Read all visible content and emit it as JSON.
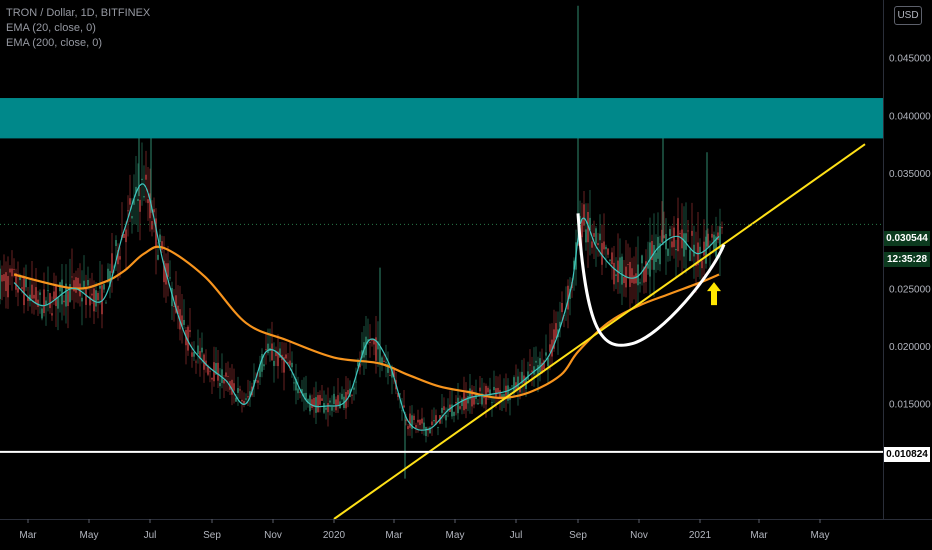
{
  "legend": {
    "symbol": "TRON / Dollar, 1D, BITFINEX",
    "ema20": "EMA (20, close, 0)",
    "ema200": "EMA (200, close, 0)"
  },
  "currency_button": "USD",
  "current_price": {
    "value": "0.030544",
    "countdown": "12:35:28",
    "color": "#0c3b1f"
  },
  "support_price": {
    "value": "0.010824"
  },
  "colors": {
    "resistance_zone": "#00888a",
    "ema20": "#3fc7c0",
    "ema200": "#f7941d",
    "trendline": "#ffe117",
    "cup_curve": "#ffffff",
    "support_line": "#ffffff",
    "arrow": "#ffe600",
    "bull_candle": "#2f8a6e",
    "bear_candle": "#b03a3a"
  },
  "chart_data": {
    "type": "line",
    "title": "TRON / Dollar, 1D, BITFINEX",
    "x_ticks": [
      "Mar",
      "May",
      "Jul",
      "Sep",
      "Nov",
      "2020",
      "Mar",
      "May",
      "Jul",
      "Sep",
      "Nov",
      "2021",
      "Mar",
      "May"
    ],
    "y_ticks": [
      "0.045000",
      "0.040000",
      "0.035000",
      "0.025000",
      "0.020000",
      "0.015000"
    ],
    "ylim": [
      0.005,
      0.05
    ],
    "grid": false,
    "series": [
      {
        "name": "EMA (20, close, 0)",
        "x": [
          "2019-02-15",
          "2019-03-15",
          "2019-04-15",
          "2019-05-15",
          "2019-06-05",
          "2019-06-25",
          "2019-07-15",
          "2019-08-05",
          "2019-08-25",
          "2019-09-15",
          "2019-10-05",
          "2019-10-25",
          "2019-11-15",
          "2019-12-05",
          "2019-12-25",
          "2020-01-15",
          "2020-02-05",
          "2020-02-25",
          "2020-03-15",
          "2020-04-05",
          "2020-04-25",
          "2020-05-15",
          "2020-06-05",
          "2020-06-25",
          "2020-07-15",
          "2020-08-05",
          "2020-08-25",
          "2020-09-05",
          "2020-09-20",
          "2020-10-10",
          "2020-10-30",
          "2020-11-20",
          "2020-12-10",
          "2020-12-30",
          "2021-01-20"
        ],
        "y": [
          0.0255,
          0.0235,
          0.025,
          0.024,
          0.03,
          0.034,
          0.027,
          0.021,
          0.0185,
          0.017,
          0.015,
          0.0195,
          0.0185,
          0.0152,
          0.0148,
          0.0155,
          0.0205,
          0.0185,
          0.0135,
          0.0128,
          0.0145,
          0.0155,
          0.0158,
          0.0162,
          0.0175,
          0.0195,
          0.025,
          0.031,
          0.0285,
          0.0265,
          0.026,
          0.0285,
          0.0295,
          0.028,
          0.0295
        ]
      },
      {
        "name": "EMA (200, close, 0)",
        "x": [
          "2019-02-15",
          "2019-04-15",
          "2019-05-15",
          "2019-06-05",
          "2019-06-25",
          "2019-07-15",
          "2019-08-25",
          "2019-10-05",
          "2019-11-15",
          "2020-01-01",
          "2020-02-15",
          "2020-03-15",
          "2020-04-15",
          "2020-05-15",
          "2020-06-15",
          "2020-07-15",
          "2020-08-15",
          "2020-09-01",
          "2020-10-01",
          "2020-11-01",
          "2020-12-01",
          "2021-01-01",
          "2021-01-20"
        ],
        "y": [
          0.0262,
          0.025,
          0.0255,
          0.0265,
          0.028,
          0.0285,
          0.026,
          0.022,
          0.0205,
          0.019,
          0.0185,
          0.0175,
          0.0165,
          0.016,
          0.0155,
          0.016,
          0.0175,
          0.0195,
          0.022,
          0.0235,
          0.0245,
          0.0255,
          0.0262
        ]
      }
    ],
    "annotations": {
      "resistance_zone": [
        0.038,
        0.0415
      ],
      "support_level": 0.010824,
      "trendline": {
        "from": [
          "2020-01-01",
          0.005
        ],
        "to": [
          "2021-06-15",
          0.0375
        ]
      },
      "cup_curve": {
        "start": [
          "2020-09-01",
          0.0315
        ],
        "bottom": [
          "2020-10-25",
          0.0202
        ],
        "end": [
          "2021-01-25",
          0.0288
        ]
      },
      "arrow": {
        "at": [
          "2021-01-15",
          0.0245
        ],
        "direction": "up"
      }
    }
  }
}
